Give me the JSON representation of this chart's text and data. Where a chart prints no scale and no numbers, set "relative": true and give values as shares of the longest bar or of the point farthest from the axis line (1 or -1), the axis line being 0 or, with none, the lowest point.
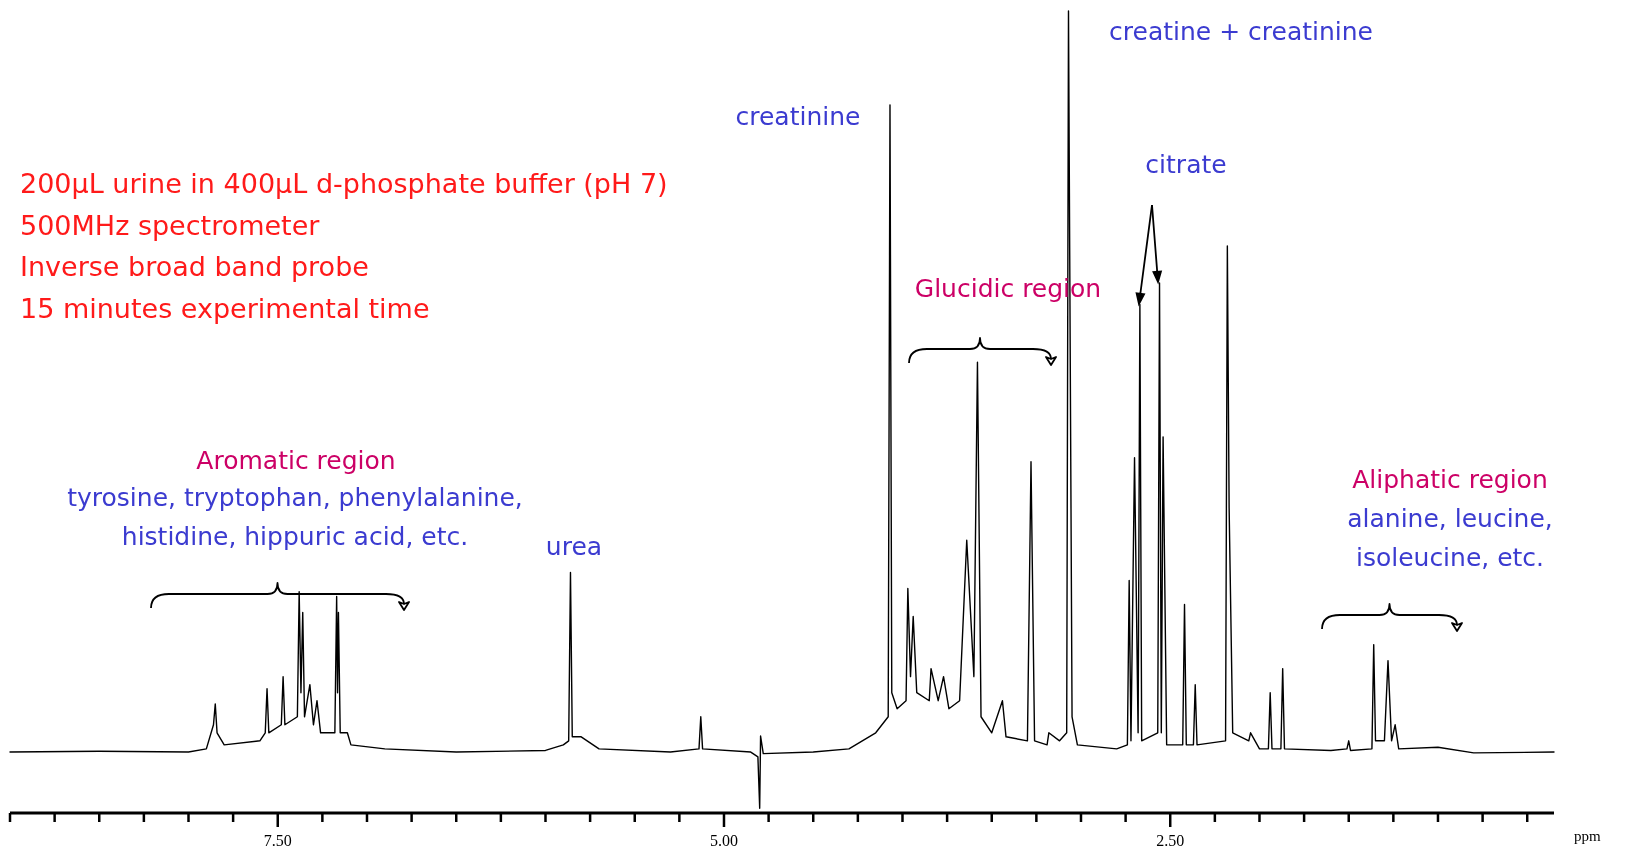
{
  "chart_data": {
    "type": "line",
    "relative": true,
    "xlabel": "ppm",
    "xlim": [
      9.0,
      0.35
    ],
    "xticks": [
      {
        "value": 9.0,
        "label": null
      },
      {
        "value": 8.75,
        "label": null
      },
      {
        "value": 8.5,
        "label": null
      },
      {
        "value": 8.25,
        "label": null
      },
      {
        "value": 8.0,
        "label": null
      },
      {
        "value": 7.75,
        "label": null
      },
      {
        "value": 7.5,
        "label": "7.50"
      },
      {
        "value": 7.25,
        "label": null
      },
      {
        "value": 7.0,
        "label": null
      },
      {
        "value": 6.75,
        "label": null
      },
      {
        "value": 6.5,
        "label": null
      },
      {
        "value": 6.25,
        "label": null
      },
      {
        "value": 6.0,
        "label": null
      },
      {
        "value": 5.75,
        "label": null
      },
      {
        "value": 5.5,
        "label": null
      },
      {
        "value": 5.25,
        "label": null
      },
      {
        "value": 5.0,
        "label": "5.00"
      },
      {
        "value": 4.75,
        "label": null
      },
      {
        "value": 4.5,
        "label": null
      },
      {
        "value": 4.25,
        "label": null
      },
      {
        "value": 4.0,
        "label": null
      },
      {
        "value": 3.75,
        "label": null
      },
      {
        "value": 3.5,
        "label": null
      },
      {
        "value": 3.25,
        "label": null
      },
      {
        "value": 3.0,
        "label": null
      },
      {
        "value": 2.75,
        "label": null
      },
      {
        "value": 2.5,
        "label": "2.50"
      },
      {
        "value": 2.25,
        "label": null
      },
      {
        "value": 2.0,
        "label": null
      },
      {
        "value": 1.75,
        "label": null
      },
      {
        "value": 1.5,
        "label": null
      },
      {
        "value": 1.25,
        "label": null
      },
      {
        "value": 1.0,
        "label": null
      },
      {
        "value": 0.75,
        "label": null
      },
      {
        "value": 0.5,
        "label": null
      }
    ],
    "tick_labels": "x",
    "series": [
      {
        "color": "#000000",
        "x": [
          9.0,
          8.5,
          8.0,
          7.9,
          7.86,
          7.85,
          7.84,
          7.8,
          7.6,
          7.57,
          7.56,
          7.55,
          7.48,
          7.47,
          7.46,
          7.39,
          7.38,
          7.37,
          7.36,
          7.35,
          7.32,
          7.3,
          7.28,
          7.26,
          7.18,
          7.17,
          7.165,
          7.16,
          7.15,
          7.11,
          7.09,
          6.9,
          6.5,
          6.0,
          5.9,
          5.87,
          5.86,
          5.85,
          5.8,
          5.7,
          5.3,
          5.14,
          5.13,
          5.12,
          4.85,
          4.81,
          4.8,
          4.795,
          4.78,
          4.5,
          4.3,
          4.15,
          4.08,
          4.07,
          4.06,
          4.03,
          3.98,
          3.97,
          3.955,
          3.94,
          3.92,
          3.85,
          3.84,
          3.8,
          3.77,
          3.74,
          3.68,
          3.64,
          3.6,
          3.58,
          3.56,
          3.5,
          3.44,
          3.42,
          3.3,
          3.28,
          3.26,
          3.19,
          3.18,
          3.12,
          3.08,
          3.07,
          3.05,
          3.02,
          2.8,
          2.74,
          2.73,
          2.72,
          2.7,
          2.68,
          2.67,
          2.66,
          2.57,
          2.56,
          2.55,
          2.54,
          2.52,
          2.43,
          2.42,
          2.41,
          2.37,
          2.36,
          2.35,
          2.19,
          2.18,
          2.17,
          2.15,
          2.06,
          2.05,
          2.0,
          1.95,
          1.94,
          1.93,
          1.88,
          1.87,
          1.86,
          1.6,
          1.51,
          1.5,
          1.49,
          1.37,
          1.36,
          1.35,
          1.3,
          1.28,
          1.26,
          1.24,
          1.22,
          1.0,
          0.8,
          0.35
        ],
        "values": [
          0.076,
          0.077,
          0.076,
          0.08,
          0.11,
          0.136,
          0.1,
          0.085,
          0.09,
          0.1,
          0.155,
          0.1,
          0.11,
          0.17,
          0.11,
          0.12,
          0.276,
          0.15,
          0.25,
          0.12,
          0.16,
          0.11,
          0.14,
          0.1,
          0.1,
          0.27,
          0.15,
          0.25,
          0.1,
          0.1,
          0.085,
          0.08,
          0.076,
          0.078,
          0.085,
          0.09,
          0.3,
          0.095,
          0.095,
          0.08,
          0.076,
          0.08,
          0.12,
          0.08,
          0.076,
          0.07,
          0.006,
          0.096,
          0.074,
          0.076,
          0.08,
          0.1,
          0.12,
          0.883,
          0.15,
          0.13,
          0.14,
          0.28,
          0.17,
          0.245,
          0.15,
          0.14,
          0.18,
          0.14,
          0.17,
          0.13,
          0.14,
          0.34,
          0.17,
          0.562,
          0.12,
          0.1,
          0.14,
          0.095,
          0.09,
          0.438,
          0.09,
          0.085,
          0.1,
          0.09,
          0.1,
          1.0,
          0.12,
          0.085,
          0.08,
          0.085,
          0.29,
          0.09,
          0.443,
          0.1,
          0.634,
          0.09,
          0.1,
          0.661,
          0.1,
          0.469,
          0.085,
          0.085,
          0.26,
          0.085,
          0.085,
          0.16,
          0.085,
          0.09,
          0.707,
          0.38,
          0.1,
          0.09,
          0.1,
          0.08,
          0.08,
          0.15,
          0.08,
          0.08,
          0.18,
          0.08,
          0.078,
          0.08,
          0.09,
          0.078,
          0.08,
          0.21,
          0.09,
          0.09,
          0.19,
          0.09,
          0.11,
          0.08,
          0.082,
          0.075,
          0.076
        ]
      }
    ],
    "annotations": [
      "200µL urine in 400µL d-phosphate buffer (pH 7)",
      "500MHz spectrometer",
      "Inverse broad band probe",
      "15 minutes experimental time",
      "creatinine",
      "creatine + creatinine",
      "citrate",
      "Glucidic region",
      "Aromatic region",
      "tyrosine, tryptophan, phenylalanine,",
      "histidine, hippuric acid, etc.",
      "urea",
      "Aliphatic region",
      "alanine, leucine,",
      "isoleucine, etc."
    ]
  }
}
